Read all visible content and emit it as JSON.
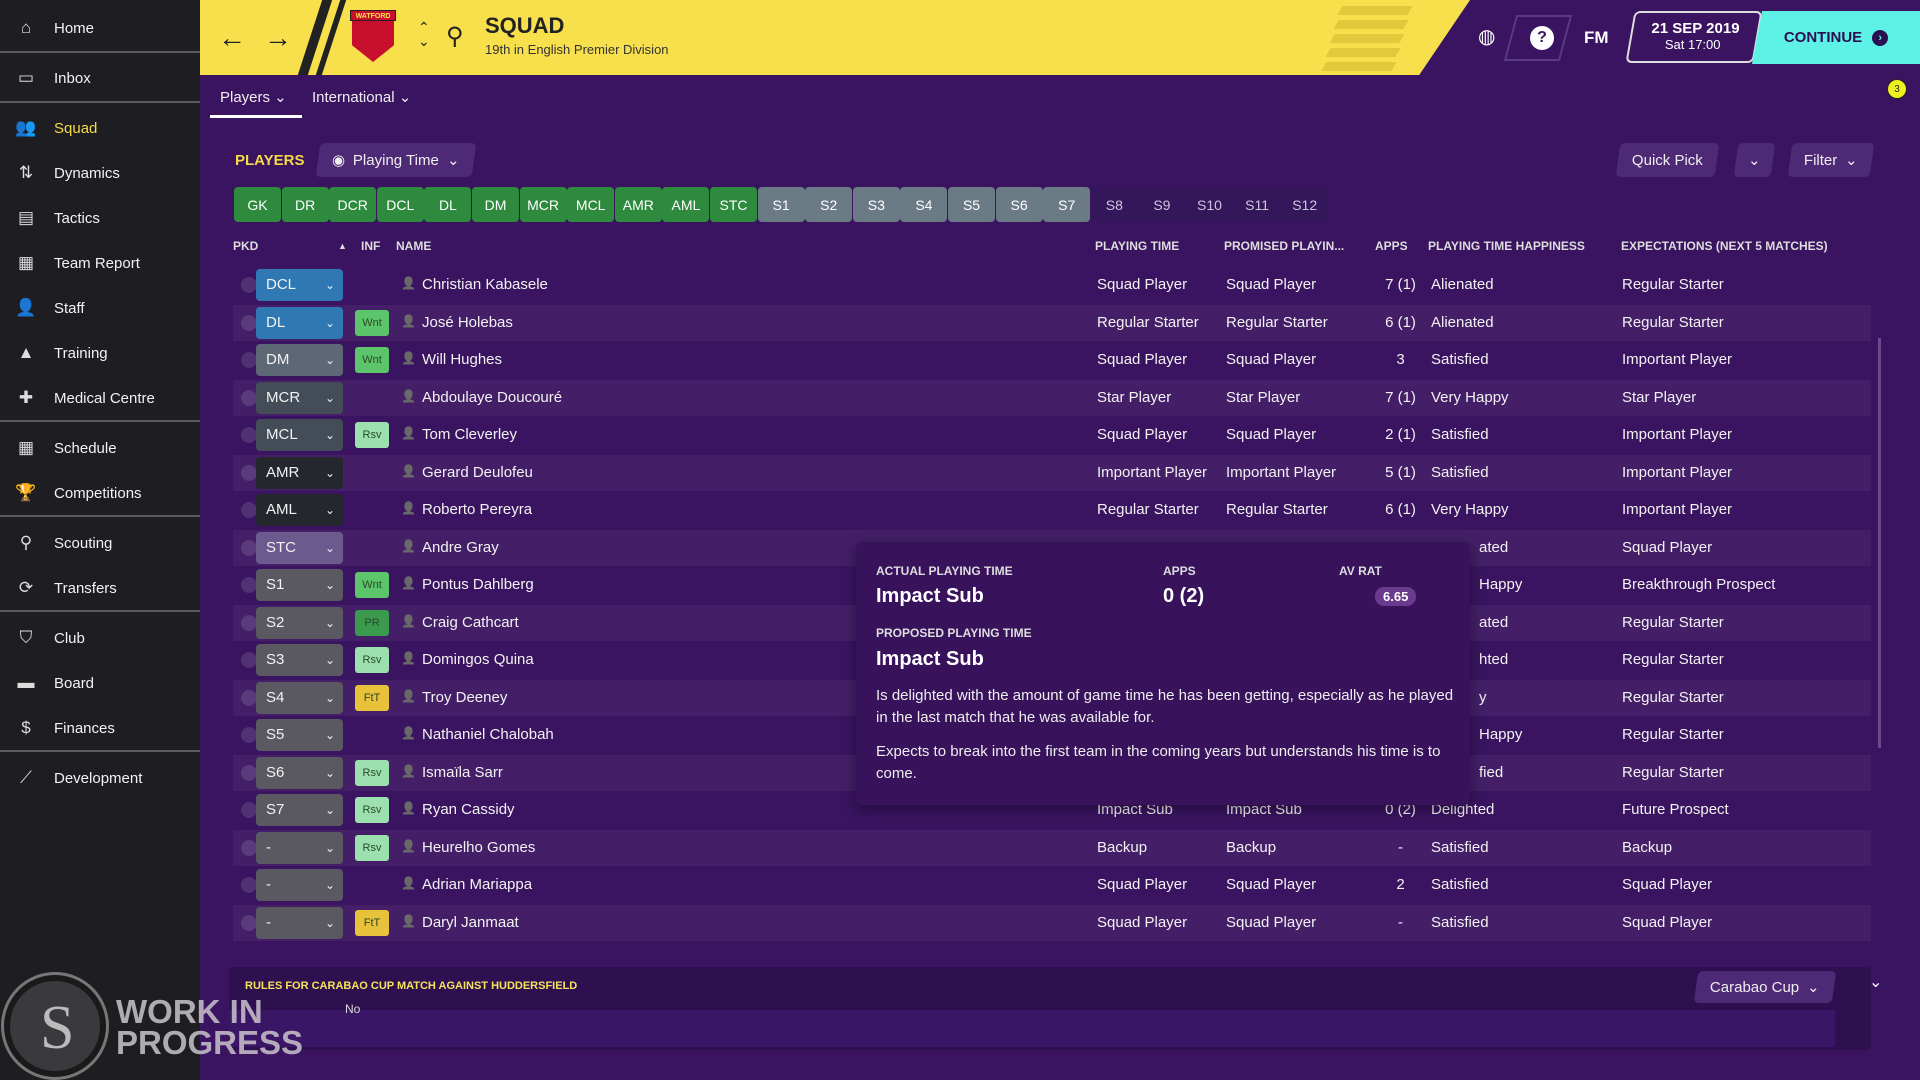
{
  "sidebar": {
    "items": [
      {
        "label": "Home",
        "icon": "home-icon",
        "glyph": "⌂"
      },
      {
        "label": "Inbox",
        "icon": "inbox-icon",
        "glyph": "▭"
      },
      {
        "label": "Squad",
        "icon": "squad-icon",
        "glyph": "👥",
        "active": true
      },
      {
        "label": "Dynamics",
        "icon": "dynamics-icon",
        "glyph": "⇅"
      },
      {
        "label": "Tactics",
        "icon": "tactics-icon",
        "glyph": "▤"
      },
      {
        "label": "Team Report",
        "icon": "team-report-icon",
        "glyph": "▦"
      },
      {
        "label": "Staff",
        "icon": "staff-icon",
        "glyph": "👤"
      },
      {
        "label": "Training",
        "icon": "training-icon",
        "glyph": "▲"
      },
      {
        "label": "Medical Centre",
        "icon": "medical-icon",
        "glyph": "✚"
      },
      {
        "label": "Schedule",
        "icon": "schedule-icon",
        "glyph": "▦"
      },
      {
        "label": "Competitions",
        "icon": "trophy-icon",
        "glyph": "🏆"
      },
      {
        "label": "Scouting",
        "icon": "search-icon",
        "glyph": "⚲"
      },
      {
        "label": "Transfers",
        "icon": "transfers-icon",
        "glyph": "⟳"
      },
      {
        "label": "Club",
        "icon": "club-shield-icon",
        "glyph": "⛉"
      },
      {
        "label": "Board",
        "icon": "board-icon",
        "glyph": "▬"
      },
      {
        "label": "Finances",
        "icon": "finances-icon",
        "glyph": "$"
      },
      {
        "label": "Development",
        "icon": "development-icon",
        "glyph": "⟋"
      }
    ],
    "watermark_logo": "SPORTS INTERACTIVE www.sigames.com",
    "watermark": "WORK IN PROGRESS",
    "overlay_text": "No"
  },
  "header": {
    "title": "SQUAD",
    "subtitle": "19th in English Premier Division",
    "crest_text": "WATFORD",
    "fm": "FM",
    "date": "21 SEP 2019",
    "time": "Sat 17:00",
    "continue": "CONTINUE",
    "notification_count": "3",
    "accent": "#f8e04c",
    "continue_color": "#5ef2e6"
  },
  "tabs": [
    {
      "label": "Players ⌄"
    },
    {
      "label": "International ⌄"
    }
  ],
  "toolbar": {
    "section": "PLAYERS",
    "view": "Playing Time",
    "quick_pick": "Quick Pick",
    "filter": "Filter"
  },
  "positions": [
    {
      "label": "GK",
      "state": "g"
    },
    {
      "label": "DR",
      "state": "g"
    },
    {
      "label": "DCR",
      "state": "g"
    },
    {
      "label": "DCL",
      "state": "g"
    },
    {
      "label": "DL",
      "state": "g"
    },
    {
      "label": "DM",
      "state": "g"
    },
    {
      "label": "MCR",
      "state": "g"
    },
    {
      "label": "MCL",
      "state": "g"
    },
    {
      "label": "AMR",
      "state": "g"
    },
    {
      "label": "AML",
      "state": "g"
    },
    {
      "label": "STC",
      "state": "g"
    },
    {
      "label": "S1",
      "state": "s"
    },
    {
      "label": "S2",
      "state": "s"
    },
    {
      "label": "S3",
      "state": "s"
    },
    {
      "label": "S4",
      "state": "s"
    },
    {
      "label": "S5",
      "state": "s"
    },
    {
      "label": "S6",
      "state": "s"
    },
    {
      "label": "S7",
      "state": "s"
    },
    {
      "label": "S8",
      "state": "e"
    },
    {
      "label": "S9",
      "state": "e"
    },
    {
      "label": "S10",
      "state": "e"
    },
    {
      "label": "S11",
      "state": "e"
    },
    {
      "label": "S12",
      "state": "e"
    }
  ],
  "table": {
    "columns": [
      "PKD",
      "INF",
      "NAME",
      "PLAYING TIME",
      "PROMISED PLAYIN...",
      "APPS",
      "PLAYING TIME HAPPINESS",
      "EXPECTATIONS (NEXT 5 MATCHES)"
    ],
    "rows": [
      {
        "pkd": "DCL",
        "color": "#2f78b4",
        "inf": "",
        "name": "Christian Kabasele",
        "pt": "Squad Player",
        "promised": "Squad Player",
        "apps": "7 (1)",
        "happy": "Alienated",
        "exp": "Regular Starter"
      },
      {
        "pkd": "DL",
        "color": "#2f78b4",
        "inf": "Wnt",
        "name": "José Holebas",
        "pt": "Regular Starter",
        "promised": "Regular Starter",
        "apps": "6 (1)",
        "happy": "Alienated",
        "exp": "Regular Starter"
      },
      {
        "pkd": "DM",
        "color": "#5d6775",
        "inf": "Wnt",
        "name": "Will Hughes",
        "pt": "Squad Player",
        "promised": "Squad Player",
        "apps": "3",
        "happy": "Satisfied",
        "exp": "Important Player"
      },
      {
        "pkd": "MCR",
        "color": "#444c58",
        "inf": "",
        "name": "Abdoulaye Doucouré",
        "pt": "Star Player",
        "promised": "Star Player",
        "apps": "7 (1)",
        "happy": "Very Happy",
        "exp": "Star Player"
      },
      {
        "pkd": "MCL",
        "color": "#444c58",
        "inf": "Rsv",
        "name": "Tom Cleverley",
        "pt": "Squad Player",
        "promised": "Squad Player",
        "apps": "2 (1)",
        "happy": "Satisfied",
        "exp": "Important Player"
      },
      {
        "pkd": "AMR",
        "color": "#25272f",
        "inf": "",
        "name": "Gerard Deulofeu",
        "pt": "Important Player",
        "promised": "Important Player",
        "apps": "5 (1)",
        "happy": "Satisfied",
        "exp": "Important Player"
      },
      {
        "pkd": "AML",
        "color": "#25272f",
        "inf": "",
        "name": "Roberto Pereyra",
        "pt": "Regular Starter",
        "promised": "Regular Starter",
        "apps": "6 (1)",
        "happy": "Very Happy",
        "exp": "Important Player"
      },
      {
        "pkd": "STC",
        "color": "#6b5a8e",
        "inf": "",
        "name": "Andre Gray",
        "pt": "",
        "promised": "",
        "apps": "",
        "happy": "ated",
        "exp": "Squad Player"
      },
      {
        "pkd": "S1",
        "color": "#5a5860",
        "inf": "Wnt",
        "name": "Pontus Dahlberg",
        "pt": "",
        "promised": "",
        "apps": "",
        "happy": "Happy",
        "exp": "Breakthrough Prospect"
      },
      {
        "pkd": "S2",
        "color": "#5a5860",
        "inf": "PR",
        "name": "Craig Cathcart",
        "pt": "",
        "promised": "",
        "apps": "",
        "happy": "ated",
        "exp": "Regular Starter"
      },
      {
        "pkd": "S3",
        "color": "#5a5860",
        "inf": "Rsv",
        "name": "Domingos Quina",
        "pt": "",
        "promised": "",
        "apps": "",
        "happy": "hted",
        "exp": "Regular Starter"
      },
      {
        "pkd": "S4",
        "color": "#5a5860",
        "inf": "FtT",
        "name": "Troy Deeney",
        "pt": "",
        "promised": "",
        "apps": "",
        "happy": "y",
        "exp": "Regular Starter"
      },
      {
        "pkd": "S5",
        "color": "#5a5860",
        "inf": "",
        "name": "Nathaniel Chalobah",
        "pt": "",
        "promised": "",
        "apps": "",
        "happy": "Happy",
        "exp": "Regular Starter"
      },
      {
        "pkd": "S6",
        "color": "#5a5860",
        "inf": "Rsv",
        "name": "Ismaïla Sarr",
        "pt": "",
        "promised": "",
        "apps": "",
        "happy": "fied",
        "exp": "Regular Starter"
      },
      {
        "pkd": "S7",
        "color": "#5a5860",
        "inf": "Rsv",
        "name": "Ryan Cassidy",
        "pt": "Impact Sub",
        "promised": "Impact Sub",
        "apps": "0 (2)",
        "happy": "Delighted",
        "exp": "Future Prospect"
      },
      {
        "pkd": "-",
        "color": "#5a5860",
        "inf": "Rsv",
        "name": "Heurelho Gomes",
        "pt": "Backup",
        "promised": "Backup",
        "apps": "-",
        "happy": "Satisfied",
        "exp": "Backup"
      },
      {
        "pkd": "-",
        "color": "#5a5860",
        "inf": "",
        "name": "Adrian Mariappa",
        "pt": "Squad Player",
        "promised": "Squad Player",
        "apps": "2",
        "happy": "Satisfied",
        "exp": "Squad Player"
      },
      {
        "pkd": "-",
        "color": "#5a5860",
        "inf": "FtT",
        "name": "Daryl Janmaat",
        "pt": "Squad Player",
        "promised": "Squad Player",
        "apps": "-",
        "happy": "Satisfied",
        "exp": "Squad Player"
      }
    ]
  },
  "tooltip": {
    "actual_label": "ACTUAL PLAYING TIME",
    "actual": "Impact Sub",
    "apps_label": "APPS",
    "apps": "0 (2)",
    "avrat_label": "AV RAT",
    "avrat": "6.65",
    "proposed_label": "PROPOSED PLAYING TIME",
    "proposed": "Impact Sub",
    "text1": "Is delighted with the amount of game time he has been getting, especially as he played in the last match that he was available for.",
    "text2": "Expects to break into the first team in the coming years but understands his time is to come."
  },
  "bottom": {
    "rules": "RULES FOR CARABAO CUP MATCH AGAINST HUDDERSFIELD",
    "competition": "Carabao Cup"
  }
}
